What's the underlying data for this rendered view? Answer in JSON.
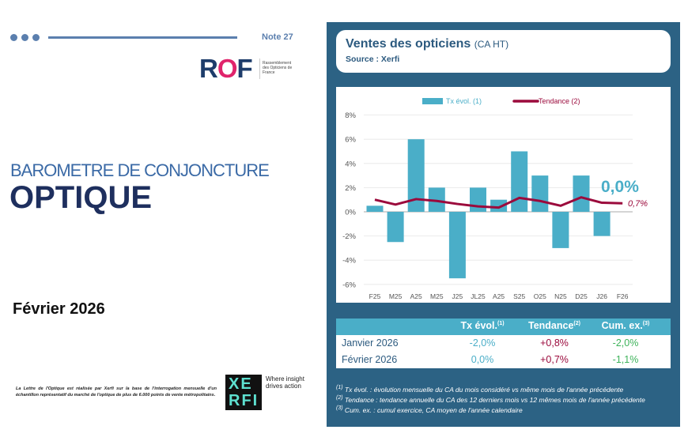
{
  "header": {
    "note": "Note 27",
    "colors": {
      "dots": "#5b7fae",
      "line": "#5b7fae"
    }
  },
  "logo_rof": {
    "text": "ROF",
    "tagline": "Rassemblement des Opticiens de France"
  },
  "title": {
    "line1": "BAROMETRE DE CONJONCTURE",
    "line2": "OPTIQUE"
  },
  "date": "Février 2026",
  "disclaimer": "La Lettre de l'Optique est réalisée par Xerfi sur la base de l'interrogation mensuelle d'un échantillon représentatif du marché de l'optique de plus de 6.000 points de vente métropolitains.",
  "logo_xerfi": {
    "text": "XERFI",
    "tagline": "Where insight drives action"
  },
  "panel": {
    "title": "Ventes des opticiens",
    "title_suffix": "(CA HT)",
    "source": "Source : Xerfi"
  },
  "chart_data": {
    "type": "bar+line",
    "categories": [
      "F25",
      "M25",
      "A25",
      "M25",
      "J25",
      "JL25",
      "A25",
      "S25",
      "O25",
      "N25",
      "D25",
      "J26",
      "F26"
    ],
    "series": [
      {
        "name": "Tx évol. (1)",
        "type": "bar",
        "color": "#4aaec8",
        "values": [
          0.5,
          -2.5,
          6,
          2,
          -5.5,
          2,
          1,
          5,
          3,
          -3,
          3,
          -2,
          0
        ]
      },
      {
        "name": "Tendance (2)",
        "type": "line",
        "color": "#9b0a3c",
        "values": [
          1.0,
          0.6,
          1.05,
          0.9,
          0.65,
          0.45,
          0.35,
          1.15,
          0.9,
          0.5,
          1.2,
          0.75,
          0.7
        ]
      }
    ],
    "yticks": [
      "8%",
      "6%",
      "4%",
      "2%",
      "0%",
      "-2%",
      "-4%",
      "-6%"
    ],
    "ylim": [
      -6,
      8
    ],
    "grid": true,
    "legend": "top",
    "annotations": {
      "bar_last": "0,0%",
      "line_last": "0,7%"
    }
  },
  "table": {
    "headers": [
      "Tx évol.",
      "Tendance",
      "Cum. ex."
    ],
    "header_sups": [
      "(1)",
      "(2)",
      "(3)"
    ],
    "rows": [
      {
        "label": "Janvier 2026",
        "tx": "-2,0%",
        "tend": "+0,8%",
        "cum": "-2,0%"
      },
      {
        "label": "Février 2026",
        "tx": "0,0%",
        "tend": "+0,7%",
        "cum": "-1,1%"
      }
    ],
    "colors": {
      "tx": "#4aaec8",
      "tend": "#9b0a3c",
      "cum": "#3db35a"
    }
  },
  "footnotes": [
    {
      "sup": "(1)",
      "text": "Tx évol. : évolution mensuelle du CA du mois considéré vs même mois de l'année précédente"
    },
    {
      "sup": "(2)",
      "text": "Tendance : tendance annuelle du CA des 12 derniers mois vs 12 mêmes mois de l'année précédente"
    },
    {
      "sup": "(3)",
      "text": "Cum. ex. : cumul exercice, CA moyen de l'année calendaire"
    }
  ]
}
